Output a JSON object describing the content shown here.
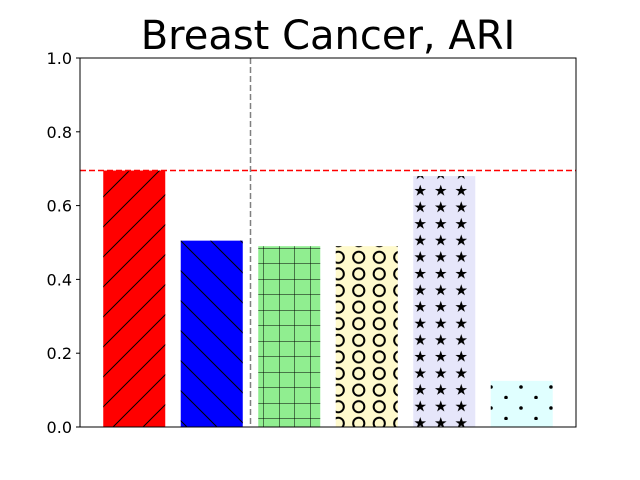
{
  "chart_data": {
    "type": "bar",
    "title": "Breast Cancer, ARI",
    "xlabel": "",
    "ylabel": "",
    "ylim": [
      0,
      1.0
    ],
    "yticks": [
      "0.0",
      "0.2",
      "0.4",
      "0.6",
      "0.8",
      "1.0"
    ],
    "grid": false,
    "legend": "none",
    "reference_line": {
      "value": 0.695,
      "color": "#ff0000",
      "style": "dashed"
    },
    "separator_line": {
      "after_bar": 2,
      "color": "#808080",
      "style": "dashed"
    },
    "bars": [
      {
        "value": 0.695,
        "color": "#ff0000",
        "pattern": "forward-diagonal"
      },
      {
        "value": 0.505,
        "color": "#0000ff",
        "pattern": "back-diagonal"
      },
      {
        "value": 0.49,
        "color": "#90ee90",
        "pattern": "grid"
      },
      {
        "value": 0.49,
        "color": "#fffacd",
        "pattern": "circles"
      },
      {
        "value": 0.68,
        "color": "#e6e6fa",
        "pattern": "stars"
      },
      {
        "value": 0.125,
        "color": "#e0ffff",
        "pattern": "dots"
      }
    ]
  }
}
